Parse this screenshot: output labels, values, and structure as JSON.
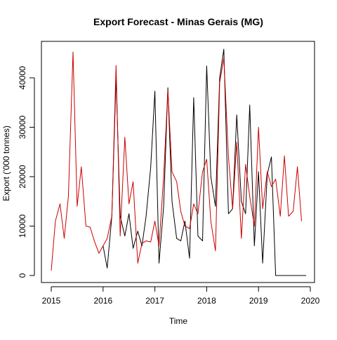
{
  "chart_data": {
    "type": "line",
    "title": "Export Forecast - Minas Gerais (MG)",
    "xlabel": "Time",
    "ylabel": "Export ('000 tonnes)",
    "xlim": [
      2015,
      2020
    ],
    "ylim": [
      0,
      46000
    ],
    "x_ticks": [
      2015,
      2016,
      2017,
      2018,
      2019,
      2020
    ],
    "y_ticks": [
      0,
      10000,
      20000,
      30000,
      40000
    ],
    "x_tick_labels": [
      "2015",
      "2016",
      "2017",
      "2018",
      "2019",
      "2020"
    ],
    "y_tick_labels": [
      "0",
      "10000",
      "20000",
      "30000",
      "40000"
    ],
    "grid": false,
    "legend": "none",
    "series": [
      {
        "color": "#000000",
        "points": [
          [
            2016.0,
            6000
          ],
          [
            2016.08,
            1500
          ],
          [
            2016.17,
            12000
          ],
          [
            2016.25,
            40000
          ],
          [
            2016.33,
            12000
          ],
          [
            2016.42,
            8000
          ],
          [
            2016.5,
            12500
          ],
          [
            2016.58,
            5500
          ],
          [
            2016.67,
            9000
          ],
          [
            2016.75,
            6000
          ],
          [
            2016.83,
            12000
          ],
          [
            2016.92,
            22000
          ],
          [
            2017.0,
            37300
          ],
          [
            2017.08,
            2500
          ],
          [
            2017.17,
            14000
          ],
          [
            2017.25,
            38000
          ],
          [
            2017.33,
            15000
          ],
          [
            2017.42,
            7500
          ],
          [
            2017.5,
            7000
          ],
          [
            2017.58,
            11000
          ],
          [
            2017.67,
            3500
          ],
          [
            2017.75,
            36000
          ],
          [
            2017.83,
            8000
          ],
          [
            2017.92,
            7000
          ],
          [
            2018.0,
            42400
          ],
          [
            2018.08,
            20000
          ],
          [
            2018.17,
            14000
          ],
          [
            2018.25,
            40000
          ],
          [
            2018.33,
            45800
          ],
          [
            2018.42,
            12500
          ],
          [
            2018.5,
            13500
          ],
          [
            2018.58,
            32500
          ],
          [
            2018.67,
            15000
          ],
          [
            2018.75,
            12500
          ],
          [
            2018.83,
            34500
          ],
          [
            2018.92,
            6000
          ],
          [
            2019.0,
            21000
          ],
          [
            2019.08,
            2500
          ],
          [
            2019.17,
            20500
          ],
          [
            2019.25,
            24000
          ],
          [
            2019.33,
            0
          ],
          [
            2019.42,
            0
          ],
          [
            2019.5,
            0
          ],
          [
            2019.58,
            0
          ],
          [
            2019.67,
            0
          ],
          [
            2019.75,
            0
          ],
          [
            2019.83,
            0
          ],
          [
            2019.92,
            0
          ]
        ]
      },
      {
        "color": "#cc0000",
        "points": [
          [
            2015.0,
            1000
          ],
          [
            2015.08,
            11000
          ],
          [
            2015.17,
            14500
          ],
          [
            2015.25,
            7500
          ],
          [
            2015.33,
            16000
          ],
          [
            2015.42,
            45200
          ],
          [
            2015.5,
            14000
          ],
          [
            2015.58,
            22000
          ],
          [
            2015.67,
            10000
          ],
          [
            2015.75,
            9800
          ],
          [
            2015.83,
            7000
          ],
          [
            2015.92,
            4500
          ],
          [
            2016.0,
            6000
          ],
          [
            2016.08,
            7500
          ],
          [
            2016.17,
            12000
          ],
          [
            2016.25,
            42500
          ],
          [
            2016.33,
            8000
          ],
          [
            2016.42,
            28000
          ],
          [
            2016.5,
            14500
          ],
          [
            2016.58,
            19000
          ],
          [
            2016.67,
            2500
          ],
          [
            2016.75,
            6500
          ],
          [
            2016.83,
            7000
          ],
          [
            2016.92,
            6800
          ],
          [
            2017.0,
            11000
          ],
          [
            2017.08,
            6000
          ],
          [
            2017.17,
            20000
          ],
          [
            2017.25,
            37500
          ],
          [
            2017.33,
            21000
          ],
          [
            2017.42,
            19000
          ],
          [
            2017.5,
            13000
          ],
          [
            2017.58,
            10000
          ],
          [
            2017.67,
            9500
          ],
          [
            2017.75,
            14500
          ],
          [
            2017.83,
            12500
          ],
          [
            2017.92,
            21000
          ],
          [
            2018.0,
            23500
          ],
          [
            2018.08,
            11000
          ],
          [
            2018.17,
            5000
          ],
          [
            2018.25,
            39000
          ],
          [
            2018.33,
            44000
          ],
          [
            2018.42,
            24000
          ],
          [
            2018.5,
            13500
          ],
          [
            2018.58,
            27000
          ],
          [
            2018.67,
            7500
          ],
          [
            2018.75,
            22500
          ],
          [
            2018.83,
            16000
          ],
          [
            2018.92,
            10000
          ],
          [
            2019.0,
            30000
          ],
          [
            2019.08,
            13500
          ],
          [
            2019.17,
            21000
          ],
          [
            2019.25,
            18000
          ],
          [
            2019.33,
            19500
          ],
          [
            2019.42,
            12000
          ],
          [
            2019.5,
            24200
          ],
          [
            2019.58,
            12000
          ],
          [
            2019.67,
            13000
          ],
          [
            2019.75,
            22000
          ],
          [
            2019.83,
            11000
          ]
        ]
      }
    ]
  }
}
